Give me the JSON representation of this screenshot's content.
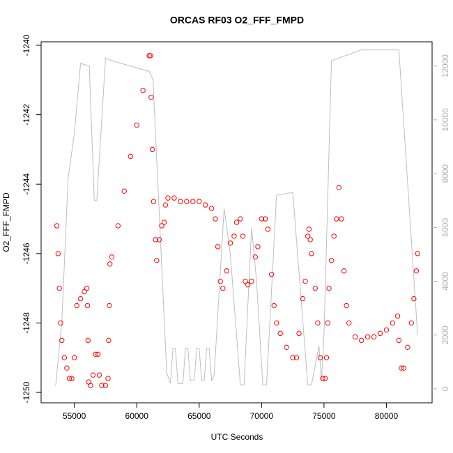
{
  "chart_data": {
    "type": "scatter",
    "title": "ORCAS RF03 O2_FFF_FMPD",
    "xlabel": "UTC Seconds",
    "ylabel": "O2_FFF_FMPD",
    "xlim": [
      52340,
      83660
    ],
    "ylim": [
      -1250.3,
      -1239.9
    ],
    "y2lim": [
      -520,
      12900
    ],
    "xticks": [
      55000,
      60000,
      65000,
      70000,
      75000,
      80000
    ],
    "yticks": [
      -1250,
      -1248,
      -1246,
      -1244,
      -1242,
      -1240
    ],
    "y2ticks": [
      0,
      2000,
      4000,
      6000,
      8000,
      10000,
      12000
    ],
    "series": [
      {
        "color": "#ff0000",
        "type": "scatter",
        "x": [
          53600,
          53700,
          53800,
          53900,
          54000,
          54200,
          54400,
          54600,
          54800,
          55000,
          55200,
          55500,
          55800,
          56000,
          56050,
          56100,
          56150,
          56300,
          56500,
          56700,
          56900,
          57000,
          57200,
          57500,
          57700,
          57750,
          57800,
          57850,
          58000,
          58500,
          59000,
          59500,
          60000,
          60500,
          61000,
          61100,
          61150,
          61250,
          61350,
          61500,
          61600,
          61800,
          62000,
          62200,
          62300,
          62500,
          63000,
          63500,
          64000,
          64500,
          65000,
          65500,
          66000,
          66300,
          66500,
          66700,
          66900,
          67200,
          67500,
          67800,
          68000,
          68300,
          68500,
          68700,
          68900,
          69200,
          69500,
          69700,
          70000,
          70300,
          70500,
          70800,
          71000,
          71200,
          71500,
          72000,
          72500,
          72800,
          73000,
          73300,
          73500,
          73700,
          73800,
          73900,
          74000,
          74300,
          74500,
          74700,
          74900,
          75100,
          75200,
          75300,
          75400,
          75600,
          75800,
          76000,
          76200,
          76400,
          76600,
          76800,
          77000,
          77500,
          78000,
          78500,
          79000,
          79500,
          80000,
          80500,
          80900,
          81000,
          81200,
          81400,
          81700,
          82000,
          82200,
          82400,
          82500
        ],
        "values": [
          -1245.2,
          -1246,
          -1247,
          -1248,
          -1248.5,
          -1249,
          -1249.3,
          -1249.6,
          -1249.6,
          -1249,
          -1247.5,
          -1247.3,
          -1247.1,
          -1247,
          -1247.5,
          -1248.5,
          -1249.7,
          -1249.8,
          -1249.5,
          -1248.9,
          -1248.9,
          -1249.5,
          -1249.8,
          -1249.8,
          -1249.6,
          -1248.5,
          -1247.5,
          -1246.3,
          -1246.1,
          -1245.2,
          -1244.2,
          -1243.2,
          -1242.3,
          -1241.3,
          -1240.3,
          -1240.3,
          -1241.5,
          -1243,
          -1244.5,
          -1245.6,
          -1246.2,
          -1245.6,
          -1245.2,
          -1245.1,
          -1244.6,
          -1244.4,
          -1244.4,
          -1244.5,
          -1244.5,
          -1244.5,
          -1244.5,
          -1244.6,
          -1244.7,
          -1245,
          -1245.8,
          -1246.8,
          -1247,
          -1246.5,
          -1245.7,
          -1245.5,
          -1245.1,
          -1245,
          -1245.5,
          -1246.8,
          -1246.9,
          -1246.8,
          -1246.1,
          -1245.8,
          -1245,
          -1245,
          -1245.3,
          -1246.6,
          -1247.5,
          -1248,
          -1248.3,
          -1248.7,
          -1249,
          -1249,
          -1248.3,
          -1247.3,
          -1246.8,
          -1245.5,
          -1245.3,
          -1245.6,
          -1246,
          -1247,
          -1248,
          -1249,
          -1249.6,
          -1249.6,
          -1249,
          -1248,
          -1247,
          -1246.2,
          -1245.5,
          -1245,
          -1244.1,
          -1245,
          -1246.5,
          -1247.5,
          -1248,
          -1248.4,
          -1248.5,
          -1248.4,
          -1248.4,
          -1248.3,
          -1248.2,
          -1248,
          -1247.8,
          -1248.5,
          -1249.3,
          -1249.3,
          -1248.7,
          -1248,
          -1247.3,
          -1246.5,
          -1246
        ]
      },
      {
        "color": "#bebebe",
        "type": "line",
        "axis": "y2",
        "x": [
          53500,
          54000,
          54500,
          55000,
          55500,
          56200,
          56600,
          56800,
          57500,
          58000,
          61000,
          61300,
          62400,
          62700,
          62900,
          63100,
          63300,
          63700,
          63900,
          64100,
          64300,
          64600,
          64800,
          65000,
          65200,
          65400,
          65600,
          65800,
          66000,
          66200,
          67000,
          67500,
          68300,
          68600,
          69200,
          69600,
          70100,
          70400,
          71200,
          72500,
          73700,
          74000,
          74600,
          74800,
          75000,
          75600,
          76200,
          78000,
          81000,
          82500
        ],
        "values": [
          100,
          2500,
          7800,
          9500,
          12100,
          12000,
          7000,
          7000,
          12300,
          12200,
          11800,
          11500,
          600,
          200,
          1500,
          1500,
          200,
          200,
          1500,
          1500,
          300,
          300,
          1500,
          1500,
          300,
          300,
          1500,
          1500,
          300,
          500,
          6700,
          5000,
          150,
          150,
          6000,
          4000,
          150,
          150,
          7200,
          7300,
          150,
          150,
          1600,
          300,
          2000,
          12200,
          12300,
          12600,
          12600,
          2000
        ]
      }
    ]
  }
}
